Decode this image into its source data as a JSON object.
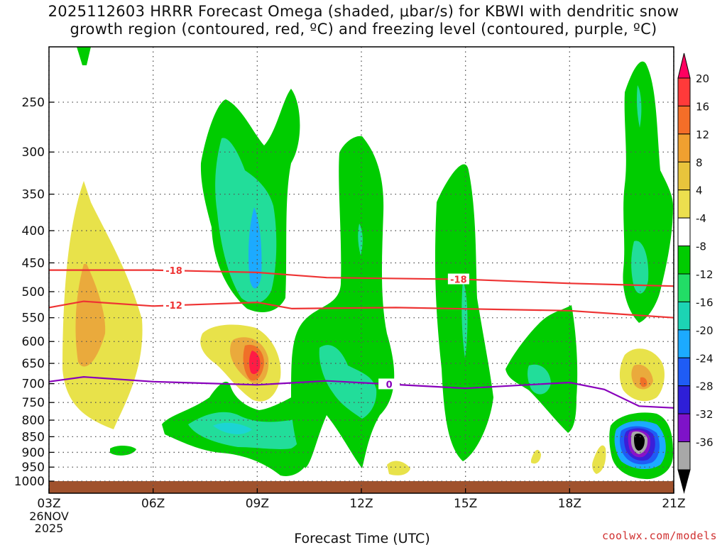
{
  "title": {
    "line1": "2025112603 HRRR Forecast Omega (shaded, μbar/s) for KBWI with dendritic snow",
    "line2": "growth region (contoured, red, ºC) and freezing level (contoured, purple, ºC)"
  },
  "credit": "coolwx.com/models",
  "chart_data": {
    "type": "heatmap",
    "title": "2025112603 HRRR Forecast Omega (shaded, μbar/s) for KBWI with dendritic snow growth region (contoured, red, ºC) and freezing level (contoured, purple, ºC)",
    "xlabel": "Forecast Time (UTC)",
    "ylabel": "",
    "x_range_hours": [
      0,
      18
    ],
    "y_range_hpa": [
      1000,
      200
    ],
    "x_ticks": [
      {
        "hour": 0,
        "label": "03Z",
        "sub": [
          "26NOV",
          "2025"
        ]
      },
      {
        "hour": 3,
        "label": "06Z"
      },
      {
        "hour": 6,
        "label": "09Z"
      },
      {
        "hour": 9,
        "label": "12Z"
      },
      {
        "hour": 12,
        "label": "15Z"
      },
      {
        "hour": 15,
        "label": "18Z"
      },
      {
        "hour": 18,
        "label": "21Z"
      }
    ],
    "y_ticks": [
      250,
      300,
      350,
      400,
      450,
      500,
      550,
      600,
      650,
      700,
      750,
      800,
      850,
      900,
      950,
      1000
    ],
    "grid": true,
    "colorbar": {
      "labels": [
        20,
        16,
        12,
        8,
        4,
        -4,
        -8,
        -12,
        -16,
        -20,
        -24,
        -28,
        -32,
        -36
      ],
      "colors": [
        "#ff0060",
        "#ff3a3a",
        "#f46e28",
        "#f0a030",
        "#e8c43c",
        "#ecdf4e",
        "#ffffff",
        "#00cc00",
        "#22dd66",
        "#1cd4b4",
        "#1caaff",
        "#1f5cf5",
        "#2e1fd8",
        "#7e12c8",
        "#a8a8a8",
        "#000000"
      ]
    },
    "omega_regions": [
      {
        "hour": 0.6,
        "p_min": 330,
        "p_max": 830,
        "value": 4
      },
      {
        "hour": 0.8,
        "p_min": 460,
        "p_max": 700,
        "value": 8
      },
      {
        "hour": 6.0,
        "p_min": 245,
        "p_max": 560,
        "value": -8
      },
      {
        "hour": 6.0,
        "p_min": 290,
        "p_max": 540,
        "value": -12
      },
      {
        "hour": 6.0,
        "p_min": 370,
        "p_max": 520,
        "value": -16
      },
      {
        "hour": 6.0,
        "p_min": 590,
        "p_max": 700,
        "value": 4
      },
      {
        "hour": 6.0,
        "p_min": 610,
        "p_max": 680,
        "value": 16
      },
      {
        "hour": 5.8,
        "p_min": 720,
        "p_max": 980,
        "value": -8
      },
      {
        "hour": 5.8,
        "p_min": 790,
        "p_max": 900,
        "value": -12
      },
      {
        "hour": 9.0,
        "p_min": 280,
        "p_max": 940,
        "value": -8
      },
      {
        "hour": 9.0,
        "p_min": 640,
        "p_max": 860,
        "value": -12
      },
      {
        "hour": 12.0,
        "p_min": 270,
        "p_max": 930,
        "value": -8
      },
      {
        "hour": 12.0,
        "p_min": 500,
        "p_max": 680,
        "value": -12
      },
      {
        "hour": 14.8,
        "p_min": 540,
        "p_max": 840,
        "value": -8
      },
      {
        "hour": 14.9,
        "p_min": 690,
        "p_max": 750,
        "value": -12
      },
      {
        "hour": 17.5,
        "p_min": 205,
        "p_max": 560,
        "value": -8
      },
      {
        "hour": 17.6,
        "p_min": 440,
        "p_max": 520,
        "value": -12
      },
      {
        "hour": 17.5,
        "p_min": 660,
        "p_max": 760,
        "value": 4
      },
      {
        "hour": 17.5,
        "p_min": 690,
        "p_max": 720,
        "value": 12
      },
      {
        "hour": 17.4,
        "p_min": 780,
        "p_max": 990,
        "value": -8
      },
      {
        "hour": 17.5,
        "p_min": 820,
        "p_max": 940,
        "value": -24
      },
      {
        "hour": 17.5,
        "p_min": 845,
        "p_max": 910,
        "value": -32
      },
      {
        "hour": 17.5,
        "p_min": 855,
        "p_max": 900,
        "value": -36
      }
    ],
    "contours": [
      {
        "name": "-18",
        "color": "#ee3333",
        "label": "-18",
        "x": [
          0,
          3,
          6,
          8,
          12,
          15,
          18
        ],
        "y": [
          462,
          462,
          466,
          475,
          478,
          485,
          490
        ]
      },
      {
        "name": "-12",
        "color": "#ee3333",
        "label": "-12",
        "x": [
          0,
          1,
          3,
          6,
          7,
          10,
          15,
          18
        ],
        "y": [
          530,
          518,
          527,
          520,
          532,
          530,
          536,
          550
        ]
      },
      {
        "name": "0",
        "color": "#8800bb",
        "label": "0",
        "x": [
          0,
          1,
          3,
          6,
          8,
          12,
          15,
          16,
          17,
          18
        ],
        "y": [
          695,
          683,
          695,
          703,
          693,
          712,
          697,
          715,
          760,
          765
        ]
      }
    ],
    "terrain_hpa": 1013
  }
}
